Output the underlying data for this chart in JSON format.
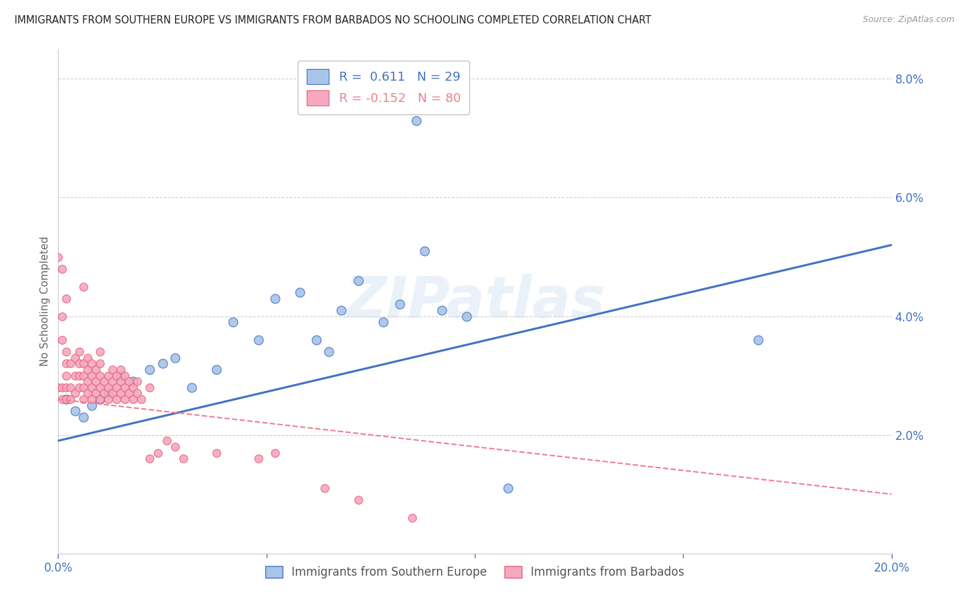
{
  "title": "IMMIGRANTS FROM SOUTHERN EUROPE VS IMMIGRANTS FROM BARBADOS NO SCHOOLING COMPLETED CORRELATION CHART",
  "source": "Source: ZipAtlas.com",
  "ylabel": "No Schooling Completed",
  "xlim": [
    0.0,
    0.2
  ],
  "ylim": [
    0.0,
    0.085
  ],
  "xticks": [
    0.0,
    0.2
  ],
  "xtick_minor": [
    0.05,
    0.1,
    0.15
  ],
  "yticks": [
    0.02,
    0.04,
    0.06,
    0.08
  ],
  "blue_r": 0.611,
  "blue_n": 29,
  "pink_r": -0.152,
  "pink_n": 80,
  "blue_color": "#a8c4e8",
  "pink_color": "#f5a8bf",
  "blue_edge_color": "#4472c4",
  "pink_edge_color": "#e8607a",
  "blue_line_color": "#4472c4",
  "pink_line_color": "#f08090",
  "watermark": "ZIPatlas",
  "blue_line_x": [
    0.0,
    0.2
  ],
  "blue_line_y": [
    0.019,
    0.052
  ],
  "pink_line_x": [
    0.0,
    0.2
  ],
  "pink_line_y": [
    0.026,
    0.01
  ],
  "blue_points_x": [
    0.002,
    0.004,
    0.006,
    0.008,
    0.01,
    0.012,
    0.015,
    0.018,
    0.022,
    0.025,
    0.028,
    0.032,
    0.038,
    0.042,
    0.048,
    0.052,
    0.058,
    0.062,
    0.065,
    0.068,
    0.072,
    0.078,
    0.082,
    0.088,
    0.092,
    0.098,
    0.108,
    0.168,
    0.086
  ],
  "blue_points_y": [
    0.026,
    0.024,
    0.023,
    0.025,
    0.026,
    0.027,
    0.03,
    0.029,
    0.031,
    0.032,
    0.033,
    0.028,
    0.031,
    0.039,
    0.036,
    0.043,
    0.044,
    0.036,
    0.034,
    0.041,
    0.046,
    0.039,
    0.042,
    0.051,
    0.041,
    0.04,
    0.011,
    0.036,
    0.073
  ],
  "pink_points_x": [
    0.0,
    0.0,
    0.001,
    0.001,
    0.001,
    0.001,
    0.001,
    0.002,
    0.002,
    0.002,
    0.002,
    0.002,
    0.002,
    0.003,
    0.003,
    0.003,
    0.004,
    0.004,
    0.004,
    0.005,
    0.005,
    0.005,
    0.005,
    0.006,
    0.006,
    0.006,
    0.006,
    0.006,
    0.007,
    0.007,
    0.007,
    0.007,
    0.008,
    0.008,
    0.008,
    0.008,
    0.009,
    0.009,
    0.009,
    0.01,
    0.01,
    0.01,
    0.01,
    0.01,
    0.011,
    0.011,
    0.012,
    0.012,
    0.012,
    0.013,
    0.013,
    0.013,
    0.014,
    0.014,
    0.014,
    0.015,
    0.015,
    0.015,
    0.016,
    0.016,
    0.016,
    0.017,
    0.017,
    0.018,
    0.018,
    0.019,
    0.019,
    0.02,
    0.022,
    0.022,
    0.024,
    0.026,
    0.028,
    0.03,
    0.038,
    0.048,
    0.052,
    0.064,
    0.072,
    0.085
  ],
  "pink_points_y": [
    0.028,
    0.05,
    0.026,
    0.028,
    0.036,
    0.04,
    0.048,
    0.026,
    0.028,
    0.03,
    0.032,
    0.034,
    0.043,
    0.026,
    0.028,
    0.032,
    0.027,
    0.03,
    0.033,
    0.028,
    0.03,
    0.032,
    0.034,
    0.026,
    0.028,
    0.03,
    0.032,
    0.045,
    0.027,
    0.029,
    0.031,
    0.033,
    0.026,
    0.028,
    0.03,
    0.032,
    0.027,
    0.029,
    0.031,
    0.026,
    0.028,
    0.03,
    0.032,
    0.034,
    0.027,
    0.029,
    0.026,
    0.028,
    0.03,
    0.027,
    0.029,
    0.031,
    0.026,
    0.028,
    0.03,
    0.027,
    0.029,
    0.031,
    0.026,
    0.028,
    0.03,
    0.027,
    0.029,
    0.026,
    0.028,
    0.027,
    0.029,
    0.026,
    0.028,
    0.016,
    0.017,
    0.019,
    0.018,
    0.016,
    0.017,
    0.016,
    0.017,
    0.011,
    0.009,
    0.006
  ]
}
